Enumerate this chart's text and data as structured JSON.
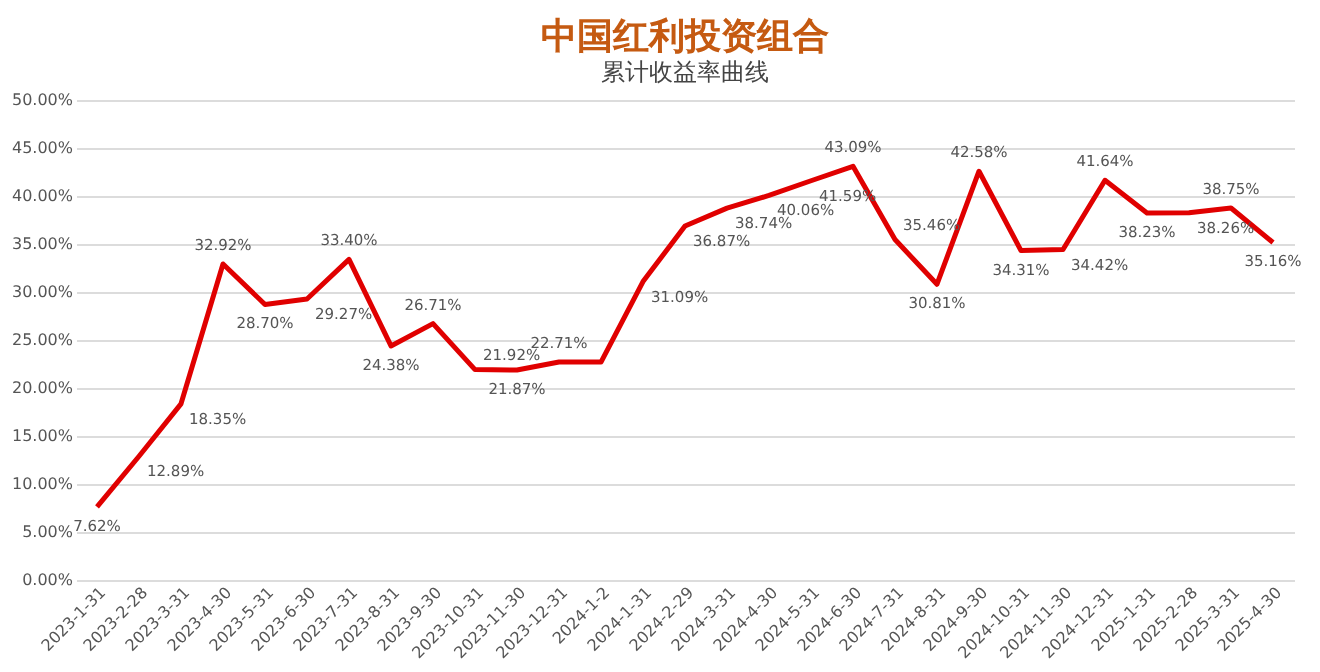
{
  "chart_data": {
    "type": "line",
    "title": "中国红利投资组合",
    "subtitle": "累计收益率曲线",
    "categories": [
      "2023-1-31",
      "2023-2-28",
      "2023-3-31",
      "2023-4-30",
      "2023-5-31",
      "2023-6-30",
      "2023-7-31",
      "2023-8-31",
      "2023-9-30",
      "2023-10-31",
      "2023-11-30",
      "2023-12-31",
      "2024-1-2",
      "2024-1-31",
      "2024-2-29",
      "2024-3-31",
      "2024-4-30",
      "2024-5-31",
      "2024-6-30",
      "2024-7-31",
      "2024-8-31",
      "2024-9-30",
      "2024-10-31",
      "2024-11-30",
      "2024-12-31",
      "2025-1-31",
      "2025-2-28",
      "2025-3-31",
      "2025-4-30"
    ],
    "series": [
      {
        "color": "#e00000",
        "values": [
          7.62,
          12.89,
          18.35,
          32.92,
          28.7,
          29.27,
          33.4,
          24.38,
          26.71,
          21.92,
          21.87,
          22.71,
          22.7,
          31.09,
          36.87,
          38.74,
          40.06,
          41.59,
          43.09,
          35.46,
          30.81,
          42.58,
          34.31,
          34.42,
          41.64,
          38.23,
          38.26,
          38.75,
          35.16
        ],
        "value_labels": [
          "7.62%",
          "12.89%",
          "18.35%",
          "32.92%",
          "28.70%",
          "29.27%",
          "33.40%",
          "24.38%",
          "26.71%",
          "21.92%",
          "21.87%",
          "22.71%",
          null,
          "31.09%",
          "36.87%",
          "38.74%",
          "40.06%",
          "41.59%",
          "43.09%",
          "35.46%",
          "30.81%",
          "42.58%",
          "34.31%",
          "34.42%",
          "41.64%",
          "38.23%",
          "38.26%",
          "38.75%",
          "35.16%"
        ]
      }
    ],
    "ylim": [
      0,
      50
    ],
    "yticks": [
      {
        "value": 0,
        "label": "0.00%"
      },
      {
        "value": 5,
        "label": "5.00%"
      },
      {
        "value": 10,
        "label": "10.00%"
      },
      {
        "value": 15,
        "label": "15.00%"
      },
      {
        "value": 20,
        "label": "20.00%"
      },
      {
        "value": 25,
        "label": "25.00%"
      },
      {
        "value": 30,
        "label": "30.00%"
      },
      {
        "value": 35,
        "label": "35.00%"
      },
      {
        "value": 40,
        "label": "40.00%"
      },
      {
        "value": 45,
        "label": "45.00%"
      },
      {
        "value": 50,
        "label": "50.00%"
      }
    ],
    "grid": "y",
    "marker": "none",
    "line_style": "solid",
    "legend": false
  }
}
